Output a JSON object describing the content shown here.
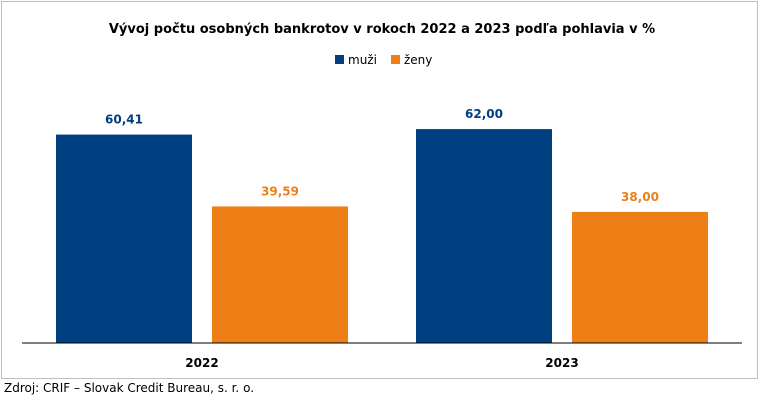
{
  "chart_data": {
    "type": "bar",
    "title": "Vývoj počtu osobných bankrotov v rokoch 2022 a 2023 podľa pohlavia v %",
    "categories": [
      "2022",
      "2023"
    ],
    "series": [
      {
        "name": "muži",
        "color": "#003f7f",
        "values": [
          60.41,
          62.0
        ],
        "labels": [
          "60,41",
          "62,00"
        ]
      },
      {
        "name": "ženy",
        "color": "#ee7f16",
        "values": [
          39.59,
          38.0
        ],
        "labels": [
          "39,59",
          "38,00"
        ]
      }
    ],
    "ylim": [
      0,
      70
    ],
    "grid": false,
    "legend_position": "top-center",
    "xlabel": "",
    "ylabel": ""
  },
  "source": "Zdroj: CRIF – Slovak Credit Bureau, s. r. o."
}
